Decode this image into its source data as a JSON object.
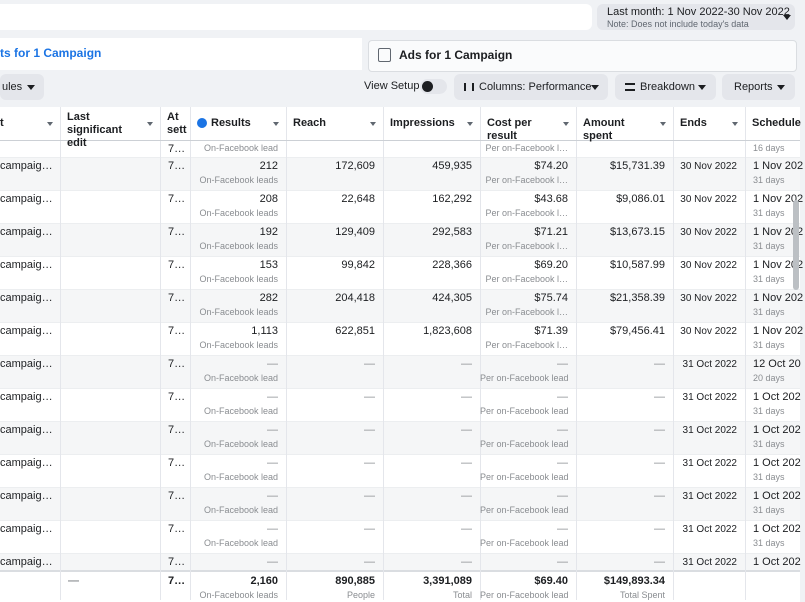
{
  "header": {
    "date_range": "Last month: 1 Nov 2022-30 Nov 2022",
    "date_note": "Note: Does not include today's data"
  },
  "tabs": [
    "ts for 1 Campaign",
    "Ads for 1 Campaign"
  ],
  "toolbar": {
    "rules": "ules",
    "view_setup": "View Setup",
    "columns": "Columns: Performance",
    "breakdown": "Breakdown",
    "reports": "Reports"
  },
  "table": {
    "columns": {
      "name": "t",
      "edit": "Last significant edit",
      "att": "At sett",
      "results": "Results",
      "reach": "Reach",
      "impressions": "Impressions",
      "cost": "Cost per result",
      "spent": "Amount spent",
      "ends": "Ends",
      "schedule": "Schedule"
    },
    "partial_row": {
      "att": "7…",
      "results_sub": "On-Facebook lead",
      "cost_sub": "Per on-Facebook l…",
      "schedule_sub": "16 days"
    },
    "rows": [
      {
        "name": "campaig…",
        "att": "7…",
        "results": "212",
        "results_sub": "On-Facebook leads",
        "reach": "172,609",
        "impressions": "459,935",
        "cost": "$74.20",
        "cost_sub": "Per on-Facebook l…",
        "spent": "$15,731.39",
        "ends": "30 Nov 2022",
        "schedule": "1 Nov 202",
        "schedule_sub": "31 days"
      },
      {
        "name": "campaig…",
        "att": "7…",
        "results": "208",
        "results_sub": "On-Facebook leads",
        "reach": "22,648",
        "impressions": "162,292",
        "cost": "$43.68",
        "cost_sub": "Per on-Facebook l…",
        "spent": "$9,086.01",
        "ends": "30 Nov 2022",
        "schedule": "1 Nov 202",
        "schedule_sub": "31 days"
      },
      {
        "name": "campaig…",
        "att": "7…",
        "results": "192",
        "results_sub": "On-Facebook leads",
        "reach": "129,409",
        "impressions": "292,583",
        "cost": "$71.21",
        "cost_sub": "Per on-Facebook l…",
        "spent": "$13,673.15",
        "ends": "30 Nov 2022",
        "schedule": "1 Nov 202",
        "schedule_sub": "31 days"
      },
      {
        "name": "campaig…",
        "att": "7…",
        "results": "153",
        "results_sub": "On-Facebook leads",
        "reach": "99,842",
        "impressions": "228,366",
        "cost": "$69.20",
        "cost_sub": "Per on-Facebook l…",
        "spent": "$10,587.99",
        "ends": "30 Nov 2022",
        "schedule": "1 Nov 202",
        "schedule_sub": "31 days"
      },
      {
        "name": "campaig…",
        "att": "7…",
        "results": "282",
        "results_sub": "On-Facebook leads",
        "reach": "204,418",
        "impressions": "424,305",
        "cost": "$75.74",
        "cost_sub": "Per on-Facebook l…",
        "spent": "$21,358.39",
        "ends": "30 Nov 2022",
        "schedule": "1 Nov 202",
        "schedule_sub": "31 days"
      },
      {
        "name": "campaig…",
        "att": "7…",
        "results": "1,113",
        "results_sub": "On-Facebook leads",
        "reach": "622,851",
        "impressions": "1,823,608",
        "cost": "$71.39",
        "cost_sub": "Per on-Facebook l…",
        "spent": "$79,456.41",
        "ends": "30 Nov 2022",
        "schedule": "1 Nov 202",
        "schedule_sub": "31 days"
      },
      {
        "name": "campaig…",
        "att": "7…",
        "results": "—",
        "results_sub": "On-Facebook lead",
        "reach": "—",
        "impressions": "—",
        "cost": "—",
        "cost_sub": "Per on-Facebook lead",
        "spent": "—",
        "ends": "31 Oct 2022",
        "schedule": "12 Oct 20",
        "schedule_sub": "20 days"
      },
      {
        "name": "campaig…",
        "att": "7…",
        "results": "—",
        "results_sub": "On-Facebook lead",
        "reach": "—",
        "impressions": "—",
        "cost": "—",
        "cost_sub": "Per on-Facebook lead",
        "spent": "—",
        "ends": "31 Oct 2022",
        "schedule": "1 Oct 202",
        "schedule_sub": "31 days"
      },
      {
        "name": "campaig…",
        "att": "7…",
        "results": "—",
        "results_sub": "On-Facebook lead",
        "reach": "—",
        "impressions": "—",
        "cost": "—",
        "cost_sub": "Per on-Facebook lead",
        "spent": "—",
        "ends": "31 Oct 2022",
        "schedule": "1 Oct 202",
        "schedule_sub": "31 days"
      },
      {
        "name": "campaig…",
        "att": "7…",
        "results": "—",
        "results_sub": "On-Facebook lead",
        "reach": "—",
        "impressions": "—",
        "cost": "—",
        "cost_sub": "Per on-Facebook lead",
        "spent": "—",
        "ends": "31 Oct 2022",
        "schedule": "1 Oct 202",
        "schedule_sub": "31 days"
      },
      {
        "name": "campaig…",
        "att": "7…",
        "results": "—",
        "results_sub": "On-Facebook lead",
        "reach": "—",
        "impressions": "—",
        "cost": "—",
        "cost_sub": "Per on-Facebook lead",
        "spent": "—",
        "ends": "31 Oct 2022",
        "schedule": "1 Oct 202",
        "schedule_sub": "31 days"
      },
      {
        "name": "campaig…",
        "att": "7…",
        "results": "—",
        "results_sub": "On-Facebook lead",
        "reach": "—",
        "impressions": "—",
        "cost": "—",
        "cost_sub": "Per on-Facebook lead",
        "spent": "—",
        "ends": "31 Oct 2022",
        "schedule": "1 Oct 202",
        "schedule_sub": "31 days"
      },
      {
        "name": "campaig…",
        "att": "7…",
        "results": "—",
        "reach": "—",
        "impressions": "—",
        "cost": "—",
        "spent": "—",
        "ends": "31 Oct 2022",
        "schedule": "1 Oct 202"
      }
    ],
    "footer": {
      "edit": "—",
      "att": "7…",
      "results": "2,160",
      "results_sub": "On-Facebook leads",
      "reach": "890,885",
      "reach_sub": "People",
      "impressions": "3,391,089",
      "impressions_sub": "Total",
      "cost": "$69.40",
      "cost_sub": "Per on-Facebook lead",
      "spent": "$149,893.34",
      "spent_sub": "Total Spent"
    }
  }
}
